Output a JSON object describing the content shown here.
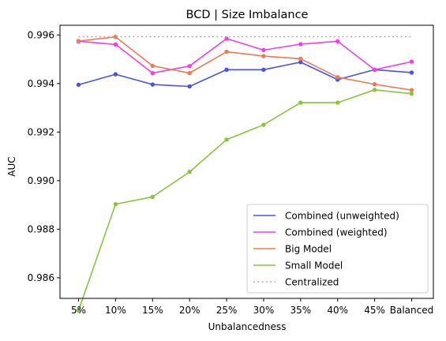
{
  "chart_data": {
    "type": "line",
    "title": "BCD | Size Imbalance",
    "xlabel": "Unbalancedness",
    "ylabel": "AUC",
    "categories": [
      "5%",
      "10%",
      "15%",
      "20%",
      "25%",
      "30%",
      "35%",
      "40%",
      "45%",
      "Balanced"
    ],
    "ylim": [
      0.98515,
      0.9964
    ],
    "yticks": [
      "0.986",
      "0.988",
      "0.990",
      "0.992",
      "0.994",
      "0.996"
    ],
    "ytick_values": [
      0.986,
      0.988,
      0.99,
      0.992,
      0.994,
      0.996
    ],
    "grid": false,
    "legend_position": "lower-right",
    "series": [
      {
        "name": "Combined (unweighted)",
        "color": "#4653e6",
        "marker": true,
        "style": "solid",
        "values": [
          0.99395,
          0.99438,
          0.99396,
          0.99388,
          0.99457,
          0.99457,
          0.99488,
          0.99416,
          0.99457,
          0.99445
        ]
      },
      {
        "name": "Combined (weighted)",
        "color": "#ee3fe9",
        "marker": true,
        "style": "solid",
        "values": [
          0.99574,
          0.99561,
          0.99443,
          0.99472,
          0.99585,
          0.99538,
          0.99562,
          0.99574,
          0.99457,
          0.9949
        ]
      },
      {
        "name": "Big Model",
        "color": "#ef7a50",
        "marker": true,
        "style": "solid",
        "values": [
          0.99575,
          0.99592,
          0.99473,
          0.99443,
          0.99531,
          0.99513,
          0.99502,
          0.99426,
          0.99397,
          0.99373
        ]
      },
      {
        "name": "Small Model",
        "color": "#8ac33f",
        "marker": true,
        "style": "solid",
        "values": [
          0.98465,
          0.98903,
          0.98933,
          0.99036,
          0.99169,
          0.9923,
          0.99321,
          0.99321,
          0.99374,
          0.99358
        ]
      },
      {
        "name": "Centralized",
        "color": "#aaaaaa",
        "marker": false,
        "style": "dotted",
        "values": [
          0.99593,
          0.99593,
          0.99593,
          0.99593,
          0.99593,
          0.99593,
          0.99593,
          0.99593,
          0.99593,
          0.99593
        ]
      }
    ]
  }
}
